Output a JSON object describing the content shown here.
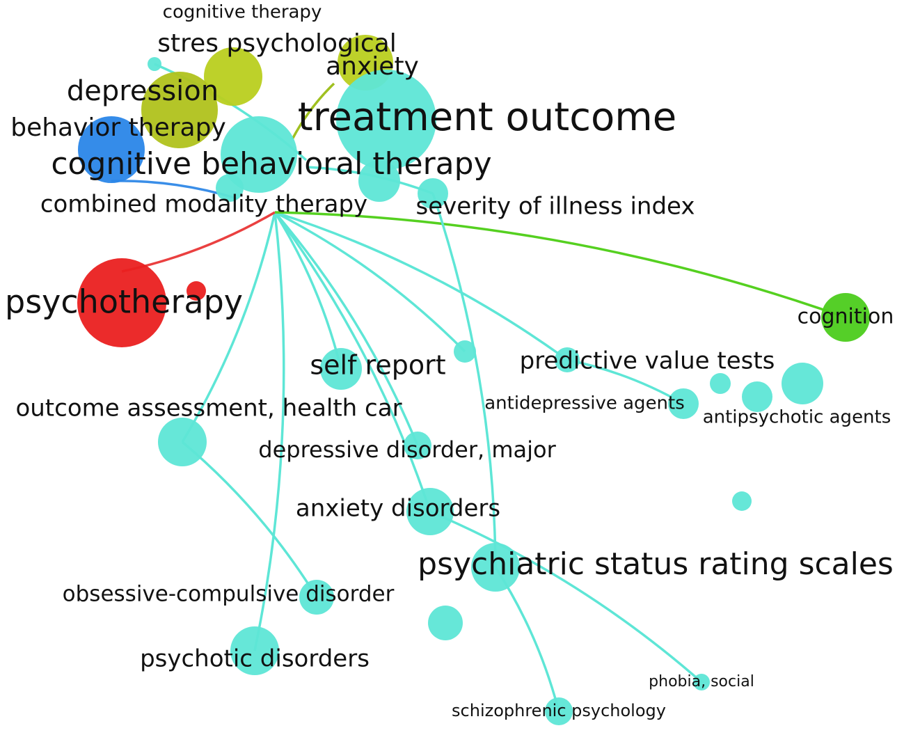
{
  "nodes": [
    {
      "label": "cognitive therapy"
    },
    {
      "label": "stres psychological"
    },
    {
      "label": "anxiety"
    },
    {
      "label": "depression"
    },
    {
      "label": "treatment  outcome"
    },
    {
      "label": "behavior therapy"
    },
    {
      "label": "cognitive behavioral therapy"
    },
    {
      "label": "combined modality therapy"
    },
    {
      "label": "severity of illness index"
    },
    {
      "label": "psychotherapy"
    },
    {
      "label": "cognition"
    },
    {
      "label": "self report"
    },
    {
      "label": "predictive value tests"
    },
    {
      "label": "antidepressive agents"
    },
    {
      "label": "antipsychotic agents"
    },
    {
      "label": "outcome assessment, health car"
    },
    {
      "label": "depressive disorder, major"
    },
    {
      "label": "anxiety disorders"
    },
    {
      "label": "psychiatric status rating scales"
    },
    {
      "label": "obsessive-compulsive disorder"
    },
    {
      "label": "psychotic disorders"
    },
    {
      "label": "phobia, social"
    },
    {
      "label": "schizophrenic psychology"
    }
  ]
}
